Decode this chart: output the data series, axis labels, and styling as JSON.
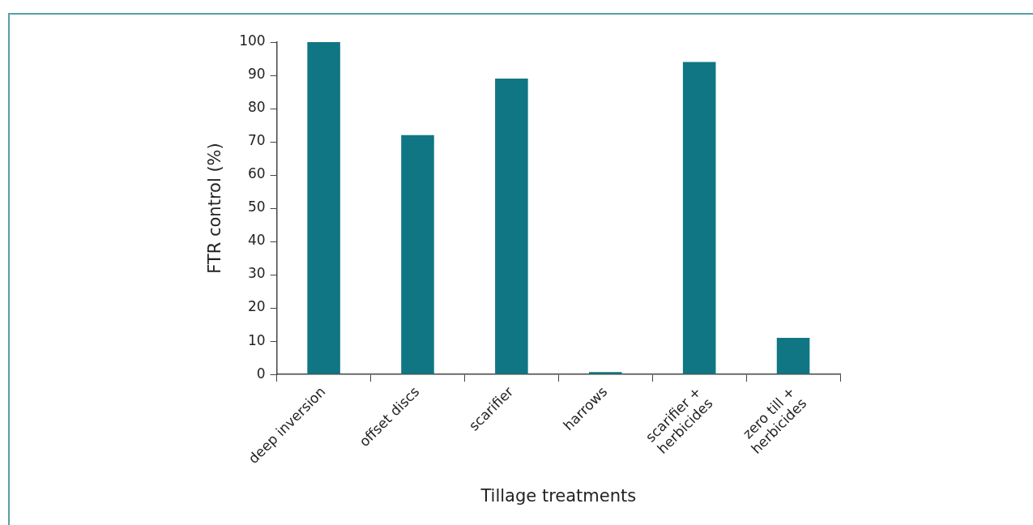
{
  "chart_data": {
    "type": "bar",
    "xlabel": "Tillage treatments",
    "ylabel": "FTR control (%)",
    "categories": [
      "deep inversion",
      "offset discs",
      "scarifier",
      "harrows",
      "scarifier + herbicides",
      "zero till + herbicides"
    ],
    "values": [
      100,
      72,
      89,
      0.7,
      94,
      11
    ],
    "color": "#107684",
    "ylim": [
      0,
      100
    ],
    "yticks": [
      0,
      10,
      20,
      30,
      40,
      50,
      60,
      70,
      80,
      90,
      100
    ],
    "grid": false,
    "legend": false
  }
}
